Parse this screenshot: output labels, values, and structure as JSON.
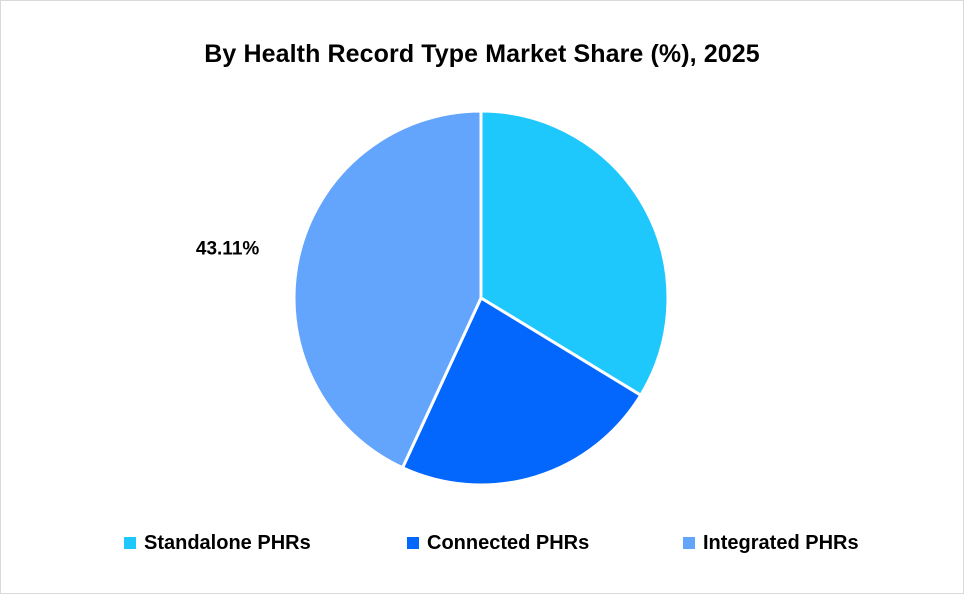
{
  "chart_data": {
    "type": "pie",
    "title": "By Health Record Type Market Share (%), 2025",
    "categories": [
      "Standalone PHRs",
      "Connected PHRs",
      "Integrated PHRs"
    ],
    "values": [
      33.7,
      23.19,
      43.11
    ],
    "colors": [
      "#1ec8fd",
      "#0366fd",
      "#63a4fd"
    ],
    "data_labels": [
      "",
      "",
      "43.11%"
    ],
    "legend_position": "bottom",
    "start_angle": "top, clockwise"
  },
  "legend": {
    "items": [
      {
        "label": "Standalone PHRs",
        "color": "#1ec8fd"
      },
      {
        "label": "Connected PHRs",
        "color": "#0366fd"
      },
      {
        "label": "Integrated PHRs",
        "color": "#63a4fd"
      }
    ]
  }
}
